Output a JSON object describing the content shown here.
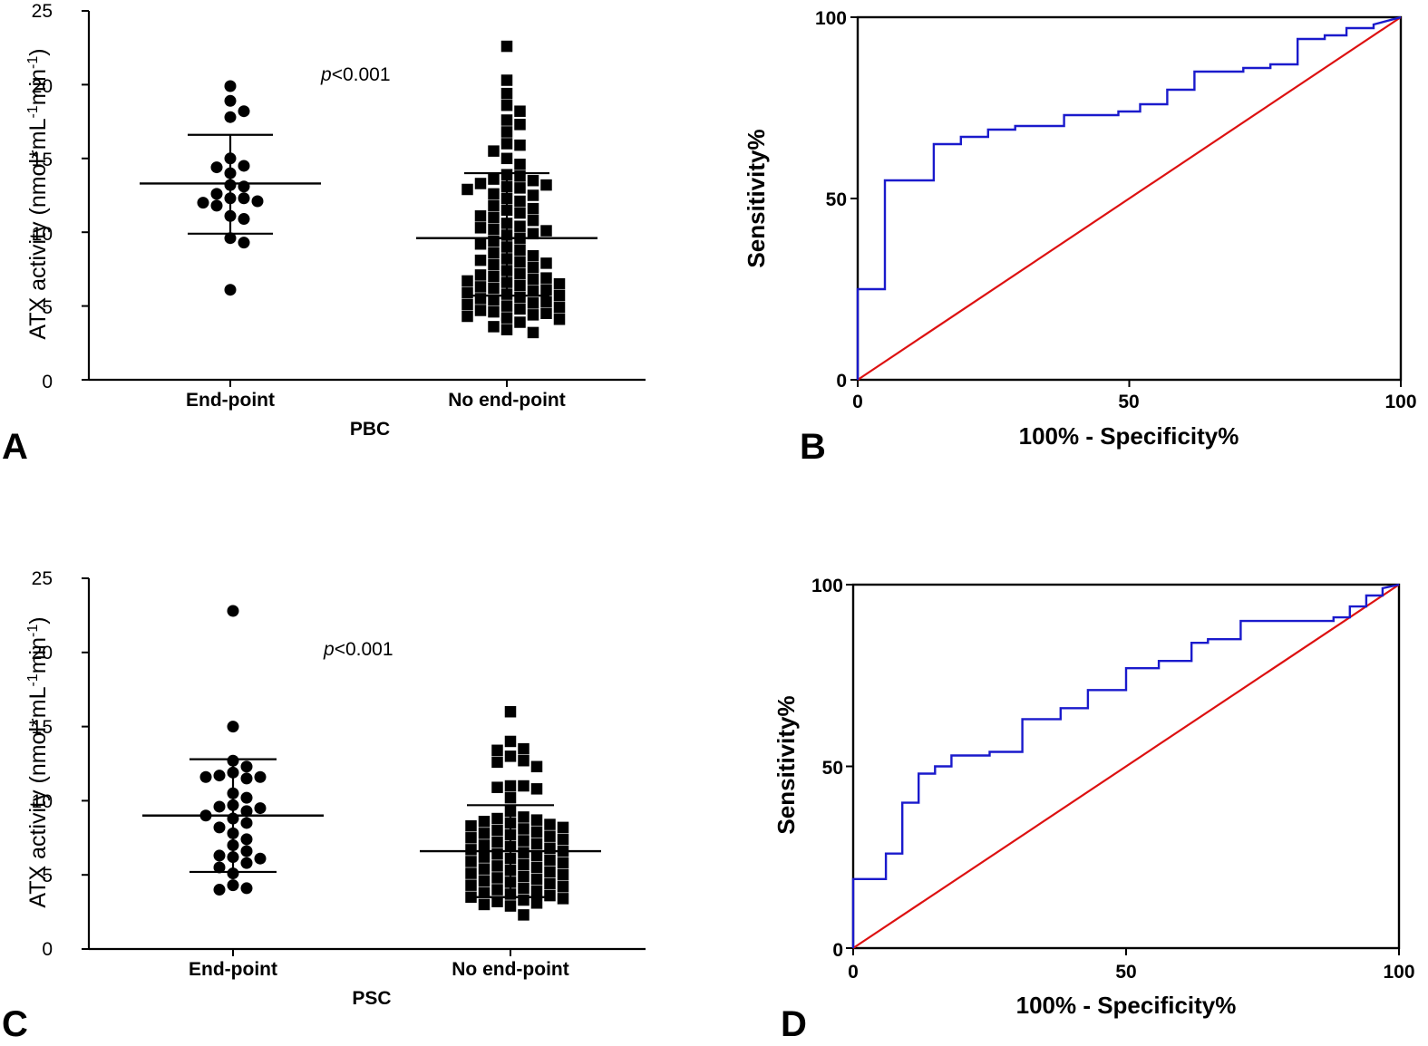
{
  "chart_data": [
    {
      "panel": "A",
      "type": "scatter",
      "ylabel": "ATX activity (nmol*mL",
      "ylabel_sup1": "-1",
      "ylabel_mid": "min",
      "ylabel_sup2": "-1",
      "ylabel_close": ")",
      "xlabel": "PBC",
      "annotation_italic": "p",
      "annotation_rest": "<0.001",
      "ylim": [
        0,
        25
      ],
      "yticks": [
        "0",
        "5",
        "10",
        "15",
        "20",
        "25"
      ],
      "categories": [
        "End-point",
        "No end-point"
      ],
      "groups": [
        {
          "name": "End-point",
          "marker": "circle",
          "mean": 13.3,
          "sd_low": 9.9,
          "sd_high": 16.6,
          "values": [
            19.9,
            18.9,
            18.2,
            17.8,
            15.0,
            14.5,
            14.4,
            14.0,
            13.2,
            13.1,
            12.6,
            12.3,
            12.3,
            12.1,
            12.0,
            11.8,
            11.1,
            10.9,
            9.6,
            9.3,
            6.1
          ]
        },
        {
          "name": "No end-point",
          "marker": "square",
          "mean": 9.6,
          "sd_low": 5.7,
          "sd_high": 14.0,
          "values": [
            22.6,
            20.3,
            19.4,
            18.6,
            18.2,
            17.6,
            17.3,
            16.8,
            16.0,
            15.9,
            15.5,
            15.0,
            14.6,
            13.9,
            13.8,
            13.6,
            13.5,
            13.3,
            13.2,
            13.1,
            13.0,
            12.9,
            12.6,
            12.5,
            12.3,
            12.1,
            11.8,
            11.6,
            11.5,
            11.3,
            11.1,
            11.0,
            10.8,
            10.6,
            10.4,
            10.3,
            10.2,
            10.1,
            9.9,
            9.8,
            9.6,
            9.4,
            9.2,
            9.0,
            8.8,
            8.6,
            8.4,
            8.2,
            8.1,
            8.0,
            7.9,
            7.8,
            7.6,
            7.4,
            7.2,
            7.1,
            7.0,
            6.9,
            6.8,
            6.7,
            6.6,
            6.5,
            6.4,
            6.3,
            6.2,
            6.1,
            6.0,
            5.9,
            5.8,
            5.7,
            5.6,
            5.5,
            5.4,
            5.3,
            5.2,
            5.1,
            5.0,
            4.9,
            4.8,
            4.7,
            4.6,
            4.5,
            4.4,
            4.3,
            4.2,
            4.1,
            3.9,
            3.6,
            3.4,
            3.2
          ]
        }
      ]
    },
    {
      "panel": "B",
      "type": "line",
      "xlabel": "100% - Specificity%",
      "ylabel": "Sensitivity%",
      "xlim": [
        0,
        100
      ],
      "ylim": [
        0,
        100
      ],
      "xticks": [
        "0",
        "50",
        "100"
      ],
      "yticks": [
        "0",
        "50",
        "100"
      ],
      "colors": {
        "roc": "#1a1acc",
        "reference": "#dd1111"
      },
      "series": [
        {
          "name": "ROC",
          "x": [
            0,
            0,
            5,
            5,
            14,
            14,
            19,
            19,
            24,
            24,
            29,
            29,
            38,
            38,
            48,
            48,
            52,
            52,
            57,
            57,
            62,
            62,
            71,
            71,
            76,
            76,
            81,
            81,
            86,
            86,
            90,
            90,
            95,
            95,
            100
          ],
          "y": [
            0,
            25,
            25,
            55,
            55,
            65,
            65,
            67,
            67,
            69,
            69,
            70,
            70,
            73,
            73,
            74,
            74,
            76,
            76,
            80,
            80,
            85,
            85,
            86,
            86,
            87,
            87,
            94,
            94,
            95,
            95,
            97,
            97,
            98,
            100
          ]
        },
        {
          "name": "Reference",
          "x": [
            0,
            100
          ],
          "y": [
            0,
            100
          ]
        }
      ]
    },
    {
      "panel": "C",
      "type": "scatter",
      "ylabel": "ATX activity (nmol*mL",
      "ylabel_sup1": "-1",
      "ylabel_mid": "min",
      "ylabel_sup2": "-1",
      "ylabel_close": ")",
      "xlabel": "PSC",
      "annotation_italic": "p",
      "annotation_rest": "<0.001",
      "ylim": [
        0,
        25
      ],
      "yticks": [
        "0",
        "5",
        "10",
        "15",
        "20",
        "25"
      ],
      "categories": [
        "End-point",
        "No end-point"
      ],
      "groups": [
        {
          "name": "End-point",
          "marker": "circle",
          "mean": 9.0,
          "sd_low": 5.2,
          "sd_high": 12.8,
          "values": [
            22.8,
            15.0,
            12.7,
            12.3,
            11.9,
            11.7,
            11.6,
            11.6,
            11.5,
            10.5,
            10.2,
            9.7,
            9.6,
            9.5,
            9.3,
            9.0,
            8.8,
            8.5,
            8.2,
            7.8,
            7.4,
            7.0,
            6.6,
            6.3,
            6.2,
            6.1,
            5.8,
            5.5,
            5.1,
            4.3,
            4.1,
            4.0
          ]
        },
        {
          "name": "No end-point",
          "marker": "square",
          "mean": 6.6,
          "sd_low": 3.5,
          "sd_high": 9.7,
          "values": [
            16.0,
            14.0,
            13.5,
            13.4,
            13.0,
            12.7,
            12.6,
            12.3,
            11.0,
            11.0,
            10.9,
            10.8,
            10.2,
            9.3,
            8.9,
            8.8,
            8.7,
            8.6,
            8.5,
            8.4,
            8.3,
            8.2,
            8.1,
            8.0,
            7.9,
            7.8,
            7.7,
            7.6,
            7.5,
            7.4,
            7.3,
            7.2,
            7.1,
            7.0,
            6.9,
            6.8,
            6.7,
            6.6,
            6.5,
            6.4,
            6.3,
            6.2,
            6.1,
            6.0,
            5.9,
            5.8,
            5.7,
            5.6,
            5.5,
            5.4,
            5.3,
            5.2,
            5.1,
            5.0,
            4.9,
            4.8,
            4.7,
            4.6,
            4.5,
            4.4,
            4.3,
            4.2,
            4.1,
            4.0,
            3.9,
            3.8,
            3.7,
            3.6,
            3.5,
            3.4,
            3.3,
            3.2,
            3.1,
            3.0,
            2.9,
            2.3
          ]
        }
      ]
    },
    {
      "panel": "D",
      "type": "line",
      "xlabel": "100% - Specificity%",
      "ylabel": "Sensitivity%",
      "xlim": [
        0,
        100
      ],
      "ylim": [
        0,
        100
      ],
      "xticks": [
        "0",
        "50",
        "100"
      ],
      "yticks": [
        "0",
        "50",
        "100"
      ],
      "colors": {
        "roc": "#1a1acc",
        "reference": "#dd1111"
      },
      "series": [
        {
          "name": "ROC",
          "x": [
            0,
            0,
            6,
            6,
            9,
            9,
            12,
            12,
            15,
            15,
            18,
            18,
            25,
            25,
            31,
            31,
            38,
            38,
            43,
            43,
            50,
            50,
            56,
            56,
            62,
            62,
            65,
            65,
            71,
            71,
            81,
            81,
            88,
            88,
            91,
            91,
            94,
            94,
            97,
            97,
            100
          ],
          "y": [
            0,
            19,
            19,
            26,
            26,
            40,
            40,
            48,
            48,
            50,
            50,
            53,
            53,
            54,
            54,
            63,
            63,
            66,
            66,
            71,
            71,
            77,
            77,
            79,
            79,
            84,
            84,
            85,
            85,
            90,
            90,
            90,
            90,
            91,
            91,
            94,
            94,
            97,
            97,
            99,
            100
          ]
        },
        {
          "name": "Reference",
          "x": [
            0,
            100
          ],
          "y": [
            0,
            100
          ]
        }
      ]
    }
  ]
}
